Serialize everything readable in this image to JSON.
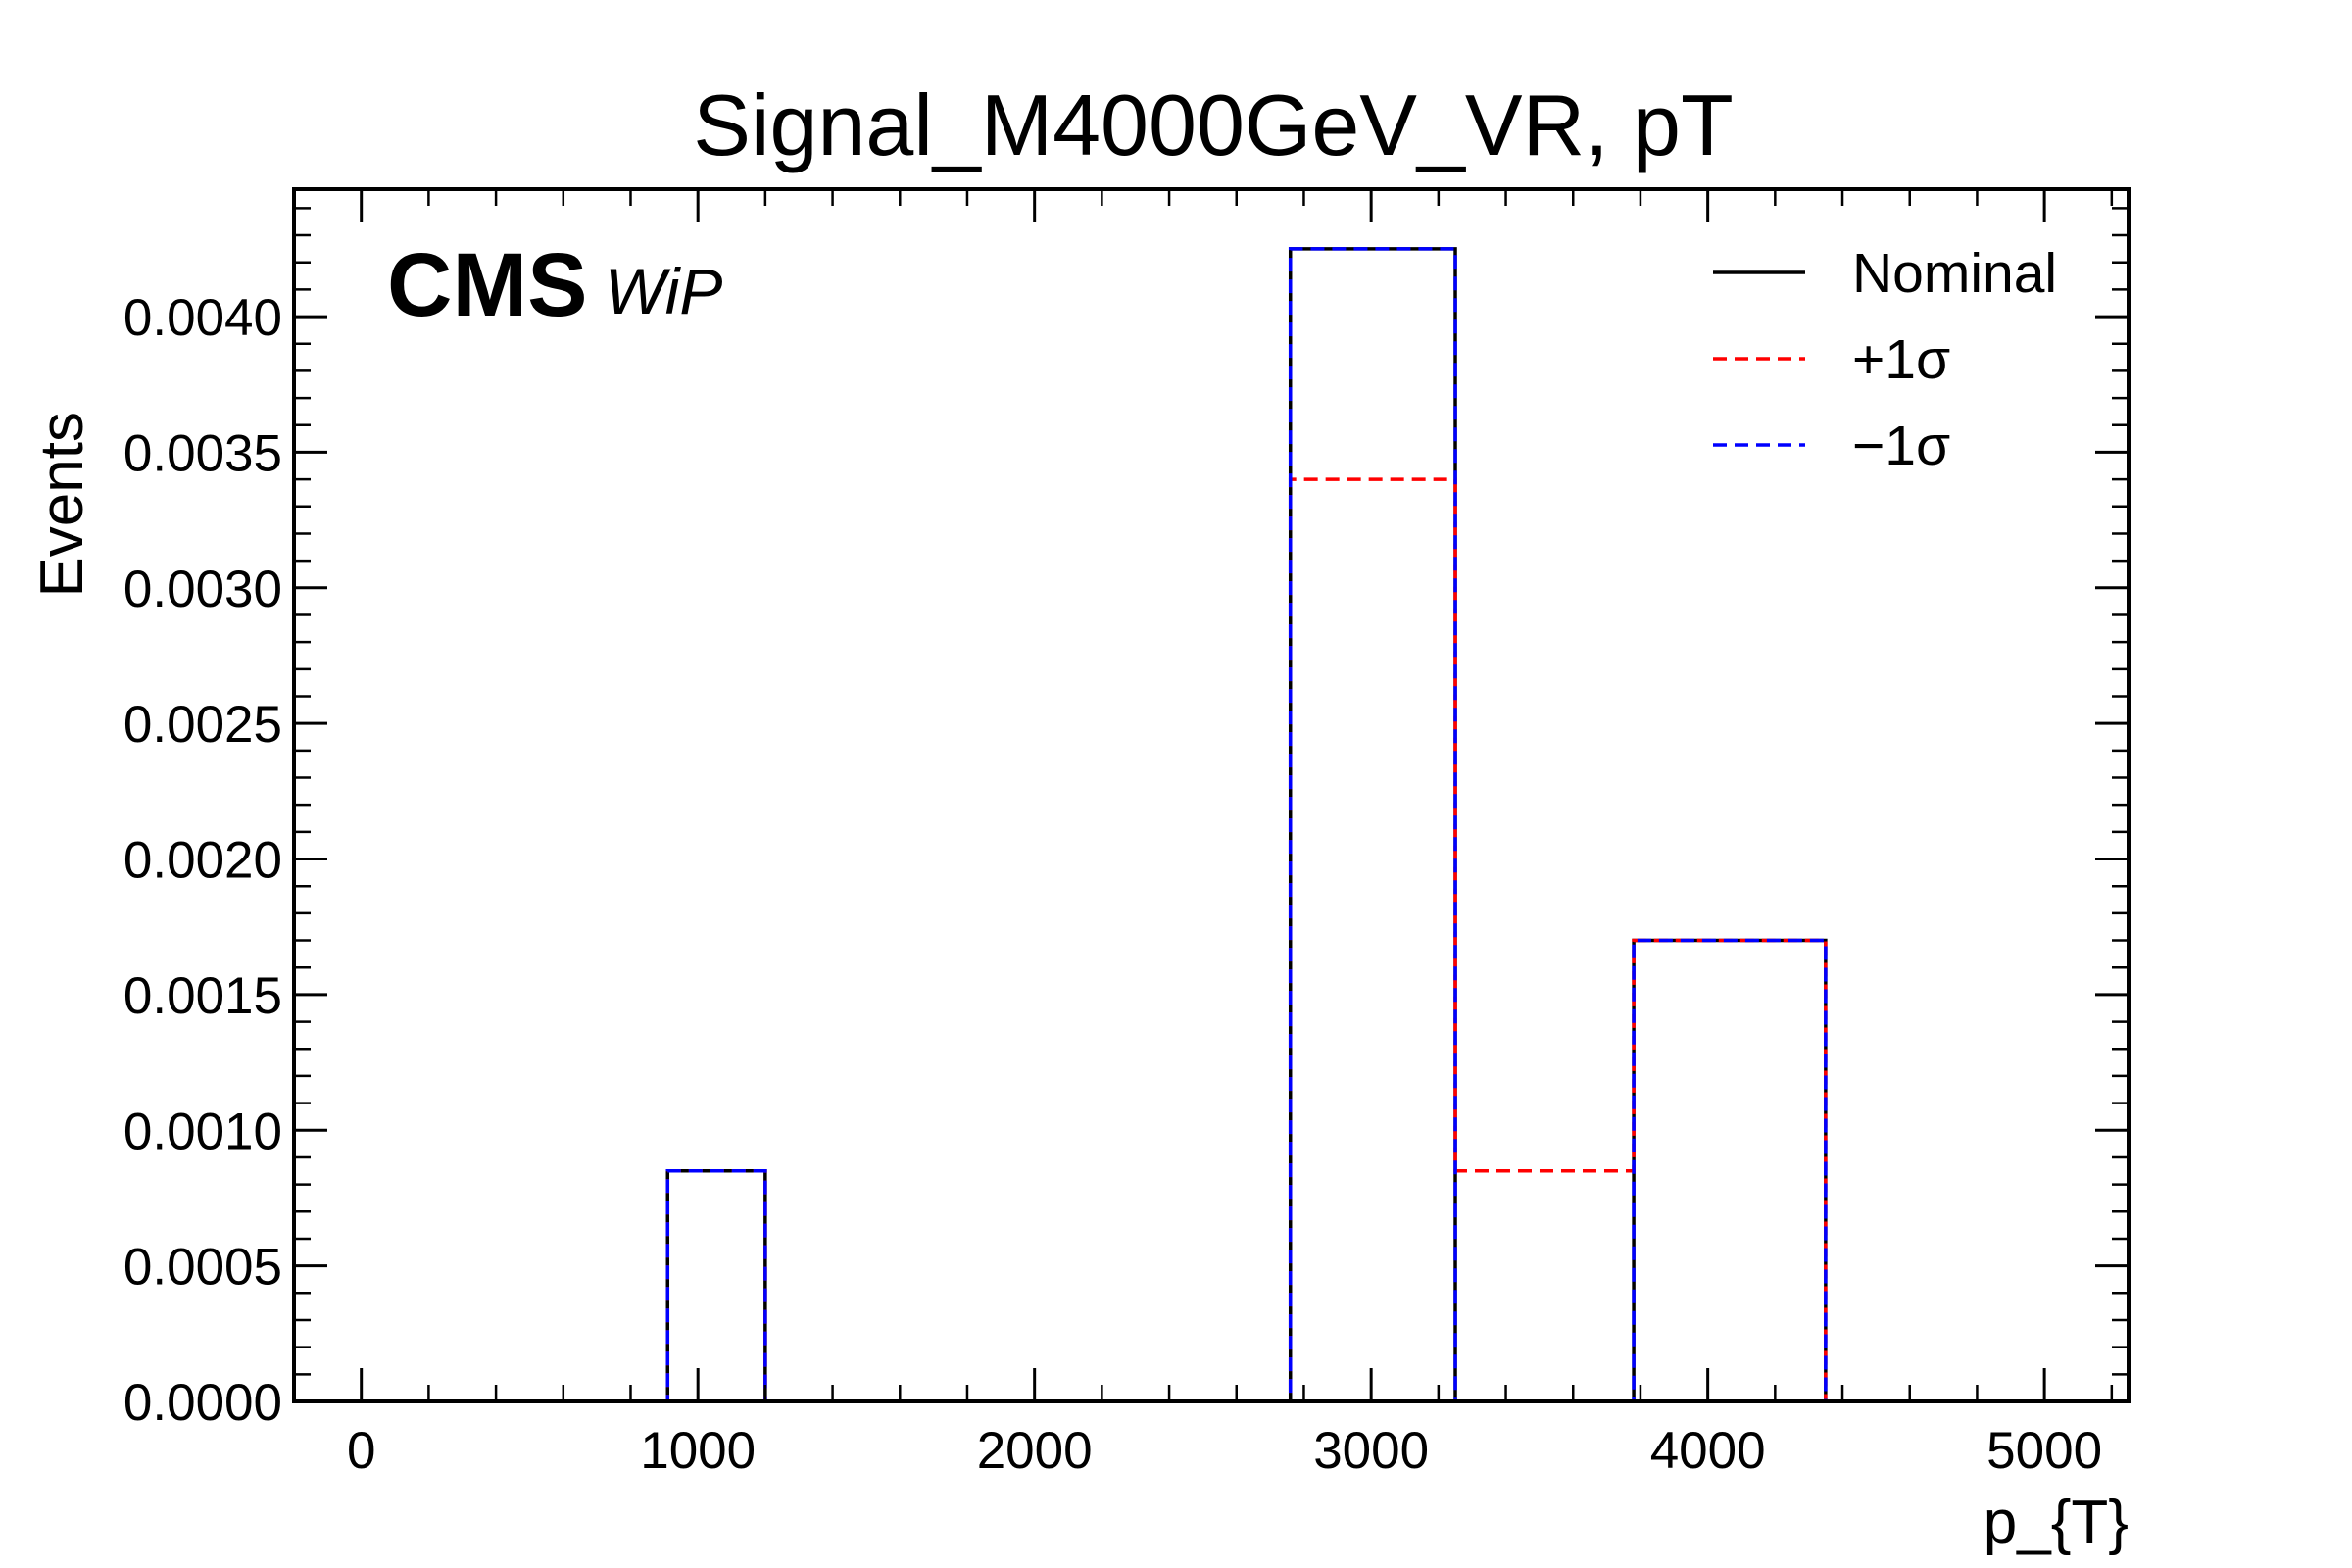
{
  "chart_data": {
    "type": "bar",
    "histtype": "step",
    "title": "Signal_M4000GeV_VR, pT",
    "xlabel": "p_{T}",
    "ylabel": "Events",
    "xlim": [
      -200,
      5250
    ],
    "ylim": [
      0,
      0.00447
    ],
    "xticks": [
      "0",
      "1000",
      "2000",
      "3000",
      "4000",
      "5000"
    ],
    "yticks": [
      "0.0000",
      "0.0005",
      "0.0010",
      "0.0015",
      "0.0020",
      "0.0025",
      "0.0030",
      "0.0035",
      "0.0040"
    ],
    "bin_edges": [
      -200,
      910,
      1200,
      2760,
      3250,
      3780,
      4350,
      5250
    ],
    "grid": false,
    "legend_position": "top-right",
    "series": [
      {
        "name": "Nominal",
        "color": "#000000",
        "style": "solid",
        "values": [
          0,
          0.00085,
          0,
          0.00425,
          0,
          0.0017,
          0
        ]
      },
      {
        "name": "+1σ",
        "color": "#ff0000",
        "style": "dashed",
        "values": [
          0,
          0.00085,
          0,
          0.0034,
          0.00085,
          0.0017,
          0
        ]
      },
      {
        "name": "−1σ",
        "color": "#0000ff",
        "style": "dashed",
        "values": [
          0,
          0.00085,
          0,
          0.00425,
          0,
          0.0017,
          0
        ]
      }
    ]
  },
  "experiment_label": "CMS",
  "status_label": "WiP"
}
